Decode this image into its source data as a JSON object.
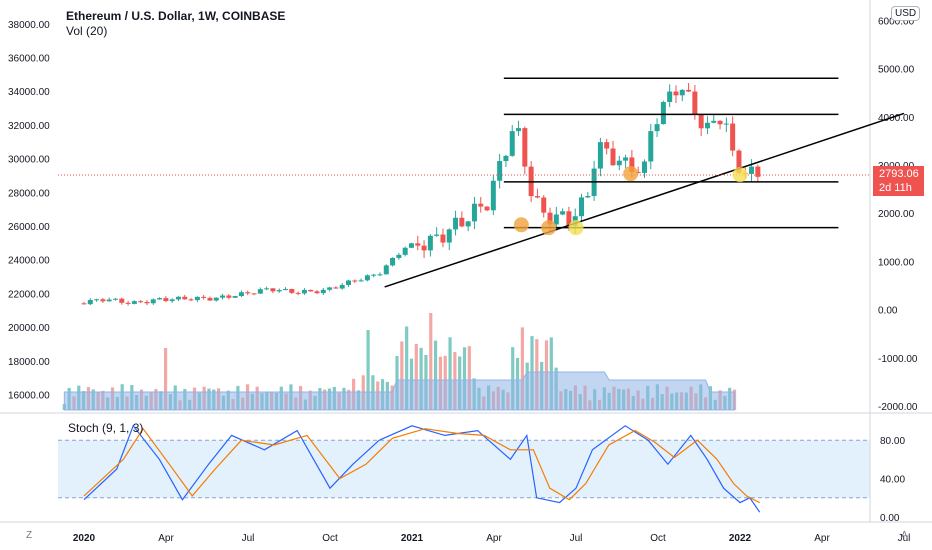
{
  "header": {
    "title": "Ethereum / U.S. Dollar, 1W, COINBASE",
    "volume_label": "Vol (20)",
    "currency_badge": "USD"
  },
  "price_tag": {
    "value": "2793.06",
    "countdown": "2d 11h"
  },
  "nav": {
    "left_button": "Z",
    "right_button": "A"
  },
  "chart_data": [
    {
      "type": "candlestick",
      "title": "Ethereum / U.S. Dollar, 1W, COINBASE",
      "left_axis": {
        "ticks": [
          "38000.00",
          "36000.00",
          "34000.00",
          "32000.00",
          "30000.00",
          "28000.00",
          "26000.00",
          "24000.00",
          "22000.00",
          "20000.00",
          "18000.00",
          "16000.00"
        ],
        "range": [
          15500,
          38500
        ]
      },
      "right_axis": {
        "ticks": [
          "6000.00",
          "5000.00",
          "4000.00",
          "3000.00",
          "2000.00",
          "1000.00",
          "0.00",
          "-1000.00",
          "-2000.00"
        ],
        "range": [
          -2000,
          6000
        ]
      },
      "time_axis": [
        "2020",
        "Apr",
        "Jul",
        "Oct",
        "2021",
        "Apr",
        "Jul",
        "Oct",
        "2022",
        "Apr",
        "Jul"
      ],
      "price_path_usd": [
        [
          "2020-01",
          130
        ],
        [
          "2020-02",
          220
        ],
        [
          "2020-03",
          130
        ],
        [
          "2020-04",
          210
        ],
        [
          "2020-05",
          230
        ],
        [
          "2020-06",
          230
        ],
        [
          "2020-07",
          320
        ],
        [
          "2020-08",
          430
        ],
        [
          "2020-09",
          360
        ],
        [
          "2020-10",
          390
        ],
        [
          "2020-11",
          580
        ],
        [
          "2020-12",
          740
        ],
        [
          "2021-01",
          1310
        ],
        [
          "2021-02",
          1420
        ],
        [
          "2021-03",
          1810
        ],
        [
          "2021-04",
          2240
        ],
        [
          "2021-05",
          3900
        ],
        [
          "2021-05-20",
          2400
        ],
        [
          "2021-06",
          1970
        ],
        [
          "2021-07",
          1870
        ],
        [
          "2021-07-20",
          2280
        ],
        [
          "2021-08",
          3400
        ],
        [
          "2021-09",
          3000
        ],
        [
          "2021-09-25",
          2900
        ],
        [
          "2021-10",
          3850
        ],
        [
          "2021-11",
          4700
        ],
        [
          "2021-12",
          3700
        ],
        [
          "2021-12-20",
          4100
        ],
        [
          "2022-01",
          3050
        ],
        [
          "2022-01-20",
          2793
        ]
      ],
      "horizontal_levels_usd": [
        4800,
        4050,
        2650,
        1700
      ],
      "trendline": {
        "from": [
          "2020-12",
          470
        ],
        "to": [
          "2022-07",
          4070
        ]
      },
      "highlighted_points": [
        {
          "date": "2021-05",
          "value": 1760,
          "color": "#f0a23a"
        },
        {
          "date": "2021-06",
          "value": 1700,
          "color": "#f0a23a"
        },
        {
          "date": "2021-07",
          "value": 1700,
          "color": "#f5e050"
        },
        {
          "date": "2021-09",
          "value": 2820,
          "color": "#f0a23a"
        },
        {
          "date": "2022-01",
          "value": 2800,
          "color": "#f5e050"
        }
      ],
      "current_price": 2793.06,
      "colors": {
        "up": "#26a69a",
        "down": "#ef5350",
        "level": "#000000",
        "last_price": "#ef5350"
      }
    },
    {
      "type": "bar",
      "title": "Vol (20)",
      "note": "volume histogram with 20-period moving average area, no printed values",
      "colors": {
        "up": "#26a69a",
        "down": "#ef5350",
        "ma_fill": "#90b4e8"
      }
    },
    {
      "type": "line",
      "title": "Stoch (9, 1, 3)",
      "y_ticks": [
        "80.00",
        "40.00",
        "0.00"
      ],
      "ylim": [
        0,
        100
      ],
      "band": [
        20,
        80
      ],
      "series": [
        {
          "color": "#2962ff",
          "values": [
            [
              2020.0,
              18
            ],
            [
              2020.1,
              50
            ],
            [
              2020.15,
              95
            ],
            [
              2020.23,
              60
            ],
            [
              2020.3,
              18
            ],
            [
              2020.38,
              55
            ],
            [
              2020.45,
              85
            ],
            [
              2020.55,
              70
            ],
            [
              2020.65,
              90
            ],
            [
              2020.75,
              30
            ],
            [
              2020.82,
              55
            ],
            [
              2020.9,
              80
            ],
            [
              2021.0,
              95
            ],
            [
              2021.1,
              85
            ],
            [
              2021.2,
              90
            ],
            [
              2021.3,
              60
            ],
            [
              2021.35,
              85
            ],
            [
              2021.38,
              20
            ],
            [
              2021.45,
              15
            ],
            [
              2021.5,
              30
            ],
            [
              2021.55,
              70
            ],
            [
              2021.65,
              95
            ],
            [
              2021.72,
              80
            ],
            [
              2021.78,
              55
            ],
            [
              2021.85,
              85
            ],
            [
              2021.9,
              60
            ],
            [
              2021.95,
              30
            ],
            [
              2022.0,
              15
            ],
            [
              2022.03,
              20
            ],
            [
              2022.06,
              5
            ]
          ]
        },
        {
          "color": "#f57c00",
          "values": [
            [
              2020.0,
              22
            ],
            [
              2020.12,
              60
            ],
            [
              2020.18,
              92
            ],
            [
              2020.26,
              55
            ],
            [
              2020.33,
              22
            ],
            [
              2020.4,
              50
            ],
            [
              2020.48,
              80
            ],
            [
              2020.58,
              75
            ],
            [
              2020.68,
              85
            ],
            [
              2020.78,
              40
            ],
            [
              2020.86,
              55
            ],
            [
              2020.94,
              82
            ],
            [
              2021.04,
              92
            ],
            [
              2021.14,
              87
            ],
            [
              2021.22,
              85
            ],
            [
              2021.3,
              70
            ],
            [
              2021.37,
              70
            ],
            [
              2021.42,
              30
            ],
            [
              2021.48,
              18
            ],
            [
              2021.53,
              35
            ],
            [
              2021.6,
              75
            ],
            [
              2021.68,
              90
            ],
            [
              2021.74,
              78
            ],
            [
              2021.8,
              62
            ],
            [
              2021.87,
              80
            ],
            [
              2021.93,
              60
            ],
            [
              2021.98,
              35
            ],
            [
              2022.02,
              22
            ],
            [
              2022.06,
              15
            ]
          ]
        }
      ]
    }
  ]
}
